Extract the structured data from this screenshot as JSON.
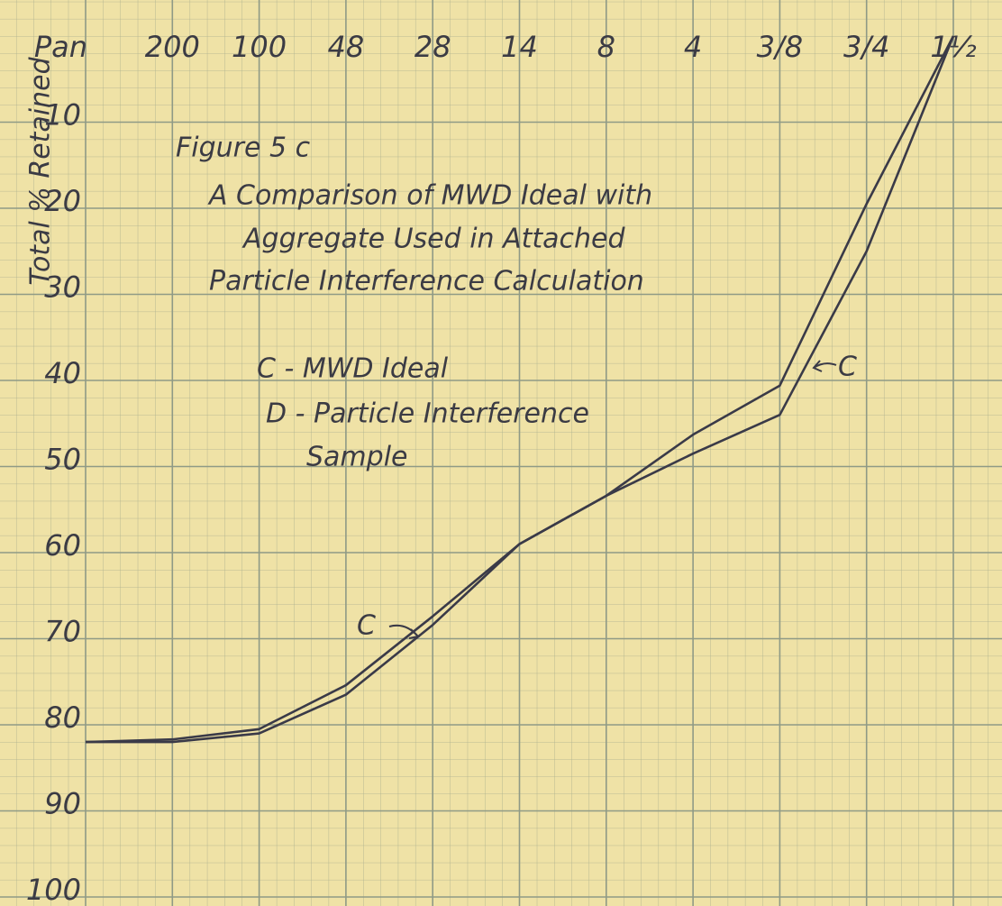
{
  "chart_data": {
    "type": "line",
    "title_lines": [
      "Figure 5 c",
      "A Comparison of MWD Ideal with",
      "Aggregate Used in Attached",
      "Particle Interference Calculation"
    ],
    "y_label": "Total % Retained",
    "categories": [
      "Pan",
      "200",
      "100",
      "48",
      "28",
      "14",
      "8",
      "4",
      "3/8",
      "3/4",
      "1½"
    ],
    "series": [
      {
        "name": "C - MWD Ideal",
        "color": "#3a3a48",
        "values": [
          82,
          82,
          81,
          76.5,
          68.4,
          59,
          53.4,
          48.5,
          44,
          25,
          0
        ]
      },
      {
        "name": "D - Particle Interference",
        "color": "#3a3a48",
        "values": [
          82,
          81.7,
          80.5,
          75.4,
          67.4,
          59,
          53.4,
          46.3,
          40.6,
          19.5,
          0
        ]
      }
    ],
    "legend_note": "Sample",
    "annotations": [
      "C",
      "C"
    ],
    "ylim": [
      0,
      100
    ],
    "yticks": [
      10,
      20,
      30,
      40,
      50,
      60,
      70,
      80,
      90,
      100
    ],
    "y_inverted": true,
    "grid": true
  }
}
